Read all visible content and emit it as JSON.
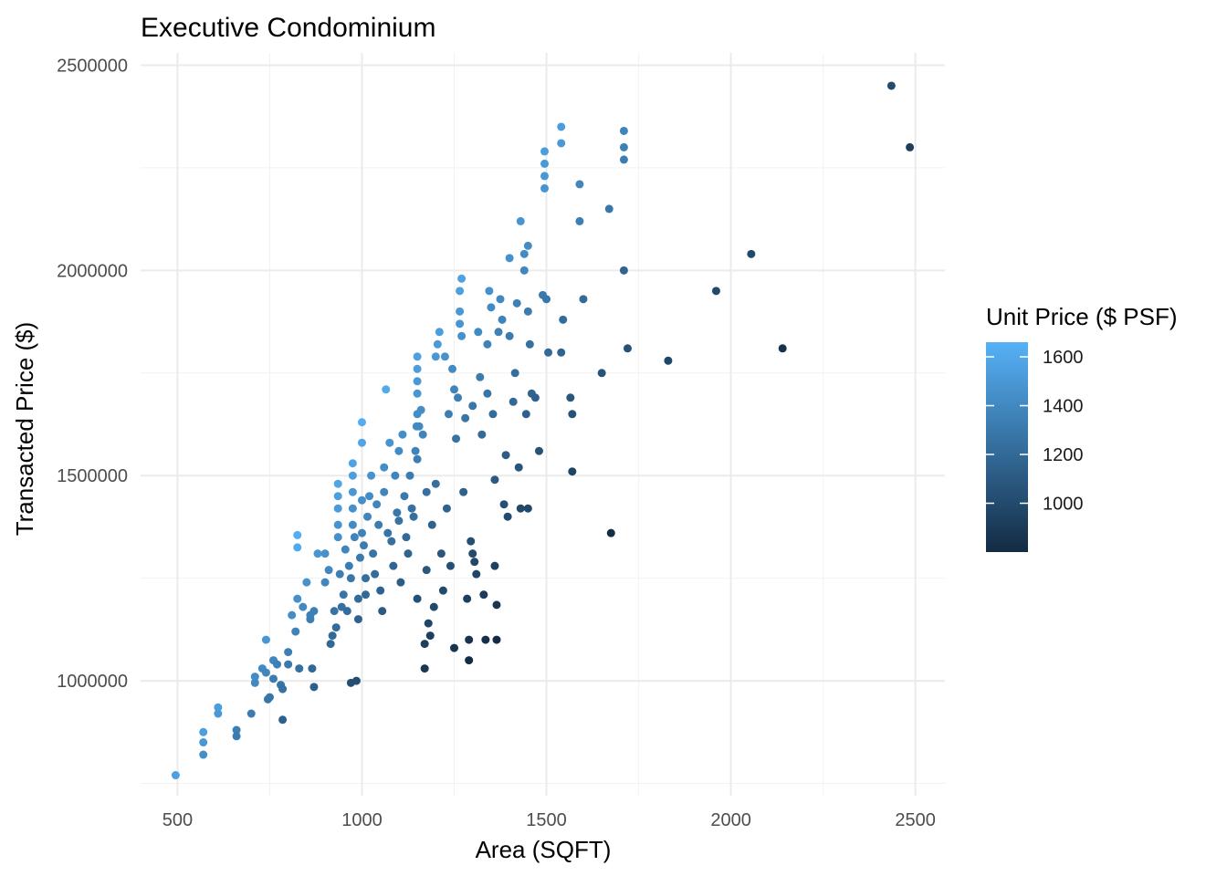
{
  "chart_data": {
    "type": "scatter",
    "title": "Executive Condominium",
    "xlabel": "Area (SQFT)",
    "ylabel": "Transacted Price ($)",
    "xlim": [
      400,
      2580
    ],
    "ylim": [
      720000,
      2530000
    ],
    "x_ticks": [
      500,
      1000,
      1500,
      2000,
      2500
    ],
    "y_ticks": [
      1000000,
      1500000,
      2000000,
      2500000
    ],
    "x_tick_labels": [
      "500",
      "1000",
      "1500",
      "2000",
      "2500"
    ],
    "y_tick_labels": [
      "1000000",
      "1500000",
      "2000000",
      "2500000"
    ],
    "grid": true,
    "legend": {
      "title": "Unit Price ($ PSF)",
      "placement": "right",
      "range": [
        800,
        1660
      ],
      "ticks": [
        1000,
        1200,
        1400,
        1600
      ],
      "tick_labels": [
        "1000",
        "1200",
        "1400",
        "1600"
      ],
      "color_low": "#132b43",
      "color_high": "#56b1f7"
    },
    "points": [
      [
        495,
        770000
      ],
      [
        570,
        820000
      ],
      [
        570,
        850000
      ],
      [
        570,
        875000
      ],
      [
        610,
        920000
      ],
      [
        610,
        935000
      ],
      [
        660,
        880000
      ],
      [
        660,
        865000
      ],
      [
        700,
        920000
      ],
      [
        710,
        1010000
      ],
      [
        710,
        995000
      ],
      [
        730,
        1030000
      ],
      [
        740,
        1100000
      ],
      [
        740,
        1020000
      ],
      [
        745,
        955000
      ],
      [
        750,
        960000
      ],
      [
        760,
        1050000
      ],
      [
        760,
        1005000
      ],
      [
        770,
        1040000
      ],
      [
        780,
        990000
      ],
      [
        785,
        980000
      ],
      [
        785,
        905000
      ],
      [
        800,
        1070000
      ],
      [
        800,
        1040000
      ],
      [
        810,
        1160000
      ],
      [
        820,
        1120000
      ],
      [
        825,
        1200000
      ],
      [
        825,
        1355000
      ],
      [
        825,
        1325000
      ],
      [
        830,
        1030000
      ],
      [
        840,
        1180000
      ],
      [
        850,
        1240000
      ],
      [
        860,
        1160000
      ],
      [
        860,
        1150000
      ],
      [
        865,
        1030000
      ],
      [
        870,
        1170000
      ],
      [
        870,
        985000
      ],
      [
        880,
        1310000
      ],
      [
        900,
        1310000
      ],
      [
        900,
        1240000
      ],
      [
        910,
        1270000
      ],
      [
        915,
        1090000
      ],
      [
        920,
        1110000
      ],
      [
        925,
        1170000
      ],
      [
        930,
        1130000
      ],
      [
        935,
        1350000
      ],
      [
        935,
        1380000
      ],
      [
        935,
        1420000
      ],
      [
        935,
        1450000
      ],
      [
        935,
        1480000
      ],
      [
        940,
        1260000
      ],
      [
        945,
        1180000
      ],
      [
        950,
        1210000
      ],
      [
        955,
        1320000
      ],
      [
        960,
        1170000
      ],
      [
        965,
        1280000
      ],
      [
        970,
        1250000
      ],
      [
        970,
        995000
      ],
      [
        975,
        1380000
      ],
      [
        975,
        1420000
      ],
      [
        975,
        1460000
      ],
      [
        975,
        1500000
      ],
      [
        975,
        1530000
      ],
      [
        980,
        1350000
      ],
      [
        985,
        1000000
      ],
      [
        990,
        1200000
      ],
      [
        990,
        1150000
      ],
      [
        995,
        1300000
      ],
      [
        1000,
        1630000
      ],
      [
        1000,
        1580000
      ],
      [
        1000,
        1440000
      ],
      [
        1000,
        1360000
      ],
      [
        1005,
        1330000
      ],
      [
        1010,
        1250000
      ],
      [
        1010,
        1210000
      ],
      [
        1015,
        1400000
      ],
      [
        1020,
        1450000
      ],
      [
        1025,
        1500000
      ],
      [
        1030,
        1310000
      ],
      [
        1035,
        1260000
      ],
      [
        1040,
        1430000
      ],
      [
        1045,
        1380000
      ],
      [
        1050,
        1220000
      ],
      [
        1055,
        1170000
      ],
      [
        1060,
        1520000
      ],
      [
        1060,
        1460000
      ],
      [
        1065,
        1710000
      ],
      [
        1070,
        1360000
      ],
      [
        1075,
        1580000
      ],
      [
        1080,
        1340000
      ],
      [
        1085,
        1280000
      ],
      [
        1090,
        1500000
      ],
      [
        1095,
        1410000
      ],
      [
        1100,
        1560000
      ],
      [
        1100,
        1390000
      ],
      [
        1105,
        1240000
      ],
      [
        1110,
        1600000
      ],
      [
        1115,
        1450000
      ],
      [
        1120,
        1350000
      ],
      [
        1125,
        1310000
      ],
      [
        1130,
        1500000
      ],
      [
        1135,
        1420000
      ],
      [
        1140,
        1400000
      ],
      [
        1145,
        1560000
      ],
      [
        1148,
        1620000
      ],
      [
        1150,
        1650000
      ],
      [
        1150,
        1700000
      ],
      [
        1150,
        1730000
      ],
      [
        1150,
        1760000
      ],
      [
        1150,
        1790000
      ],
      [
        1150,
        1540000
      ],
      [
        1150,
        1200000
      ],
      [
        1155,
        1620000
      ],
      [
        1160,
        1660000
      ],
      [
        1165,
        1600000
      ],
      [
        1170,
        1030000
      ],
      [
        1170,
        1090000
      ],
      [
        1175,
        1460000
      ],
      [
        1175,
        1270000
      ],
      [
        1180,
        1140000
      ],
      [
        1185,
        1110000
      ],
      [
        1190,
        1380000
      ],
      [
        1195,
        1180000
      ],
      [
        1200,
        1480000
      ],
      [
        1200,
        1790000
      ],
      [
        1205,
        1820000
      ],
      [
        1210,
        1850000
      ],
      [
        1215,
        1310000
      ],
      [
        1220,
        1220000
      ],
      [
        1225,
        1790000
      ],
      [
        1230,
        1420000
      ],
      [
        1235,
        1650000
      ],
      [
        1240,
        1280000
      ],
      [
        1245,
        1760000
      ],
      [
        1250,
        1710000
      ],
      [
        1250,
        1080000
      ],
      [
        1255,
        1590000
      ],
      [
        1260,
        1690000
      ],
      [
        1265,
        1950000
      ],
      [
        1265,
        1900000
      ],
      [
        1265,
        1870000
      ],
      [
        1270,
        1980000
      ],
      [
        1270,
        1840000
      ],
      [
        1275,
        1460000
      ],
      [
        1280,
        1640000
      ],
      [
        1285,
        1200000
      ],
      [
        1290,
        1050000
      ],
      [
        1290,
        1100000
      ],
      [
        1295,
        1340000
      ],
      [
        1300,
        1670000
      ],
      [
        1300,
        1310000
      ],
      [
        1305,
        1290000
      ],
      [
        1310,
        1260000
      ],
      [
        1315,
        1850000
      ],
      [
        1320,
        1740000
      ],
      [
        1325,
        1600000
      ],
      [
        1330,
        1210000
      ],
      [
        1335,
        1100000
      ],
      [
        1340,
        1820000
      ],
      [
        1340,
        1700000
      ],
      [
        1345,
        1950000
      ],
      [
        1350,
        1910000
      ],
      [
        1355,
        1650000
      ],
      [
        1360,
        1490000
      ],
      [
        1360,
        1280000
      ],
      [
        1365,
        1185000
      ],
      [
        1365,
        1100000
      ],
      [
        1370,
        1850000
      ],
      [
        1375,
        1930000
      ],
      [
        1380,
        1880000
      ],
      [
        1385,
        1430000
      ],
      [
        1390,
        1550000
      ],
      [
        1395,
        1400000
      ],
      [
        1400,
        2030000
      ],
      [
        1400,
        1840000
      ],
      [
        1410,
        1680000
      ],
      [
        1415,
        1750000
      ],
      [
        1420,
        1920000
      ],
      [
        1425,
        1520000
      ],
      [
        1430,
        2120000
      ],
      [
        1430,
        1420000
      ],
      [
        1440,
        2040000
      ],
      [
        1440,
        2000000
      ],
      [
        1445,
        1650000
      ],
      [
        1450,
        2060000
      ],
      [
        1450,
        1900000
      ],
      [
        1450,
        1420000
      ],
      [
        1455,
        1820000
      ],
      [
        1460,
        1700000
      ],
      [
        1470,
        1690000
      ],
      [
        1480,
        1560000
      ],
      [
        1490,
        1940000
      ],
      [
        1495,
        2200000
      ],
      [
        1495,
        2230000
      ],
      [
        1495,
        2260000
      ],
      [
        1495,
        2290000
      ],
      [
        1500,
        1930000
      ],
      [
        1505,
        1800000
      ],
      [
        1540,
        2350000
      ],
      [
        1540,
        2310000
      ],
      [
        1540,
        1800000
      ],
      [
        1545,
        1880000
      ],
      [
        1565,
        1690000
      ],
      [
        1570,
        1650000
      ],
      [
        1570,
        1510000
      ],
      [
        1590,
        2210000
      ],
      [
        1590,
        2120000
      ],
      [
        1600,
        1930000
      ],
      [
        1650,
        1750000
      ],
      [
        1670,
        2150000
      ],
      [
        1675,
        1360000
      ],
      [
        1710,
        2340000
      ],
      [
        1710,
        2300000
      ],
      [
        1710,
        2270000
      ],
      [
        1710,
        2000000
      ],
      [
        1720,
        1810000
      ],
      [
        1830,
        1780000
      ],
      [
        1960,
        1950000
      ],
      [
        2055,
        2040000
      ],
      [
        2140,
        1810000
      ],
      [
        2435,
        2450000
      ],
      [
        2485,
        2300000
      ]
    ]
  }
}
